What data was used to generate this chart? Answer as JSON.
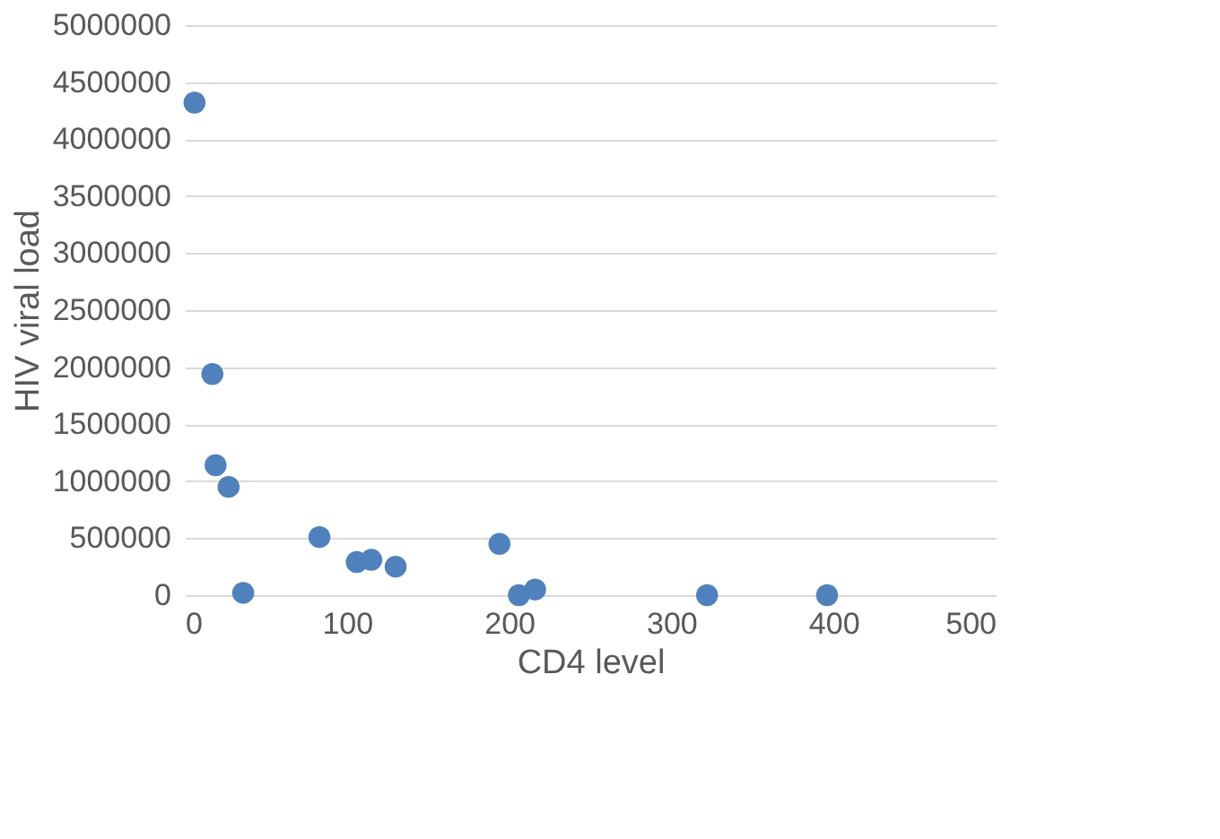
{
  "chart_data": {
    "type": "scatter",
    "xlabel": "CD4 level",
    "ylabel": "HIV viral load",
    "x": [
      6,
      17,
      19,
      27,
      36,
      83,
      106,
      115,
      130,
      194,
      206,
      216,
      322,
      396
    ],
    "series": [
      {
        "color": "#4f81bd",
        "values": [
          4320000,
          1940000,
          1140000,
          950000,
          20000,
          510000,
          290000,
          310000,
          250000,
          450000,
          0,
          50000,
          0,
          0
        ]
      }
    ],
    "xlim": [
      0,
      500
    ],
    "xticks": [
      0,
      100,
      200,
      300,
      400,
      500
    ],
    "ylim": [
      0,
      5000000
    ],
    "yticks": [
      0,
      500000,
      1000000,
      1500000,
      2000000,
      2500000,
      3000000,
      3500000,
      4000000,
      4500000,
      5000000
    ],
    "grid": "y",
    "marker": "circle",
    "legend": false
  }
}
